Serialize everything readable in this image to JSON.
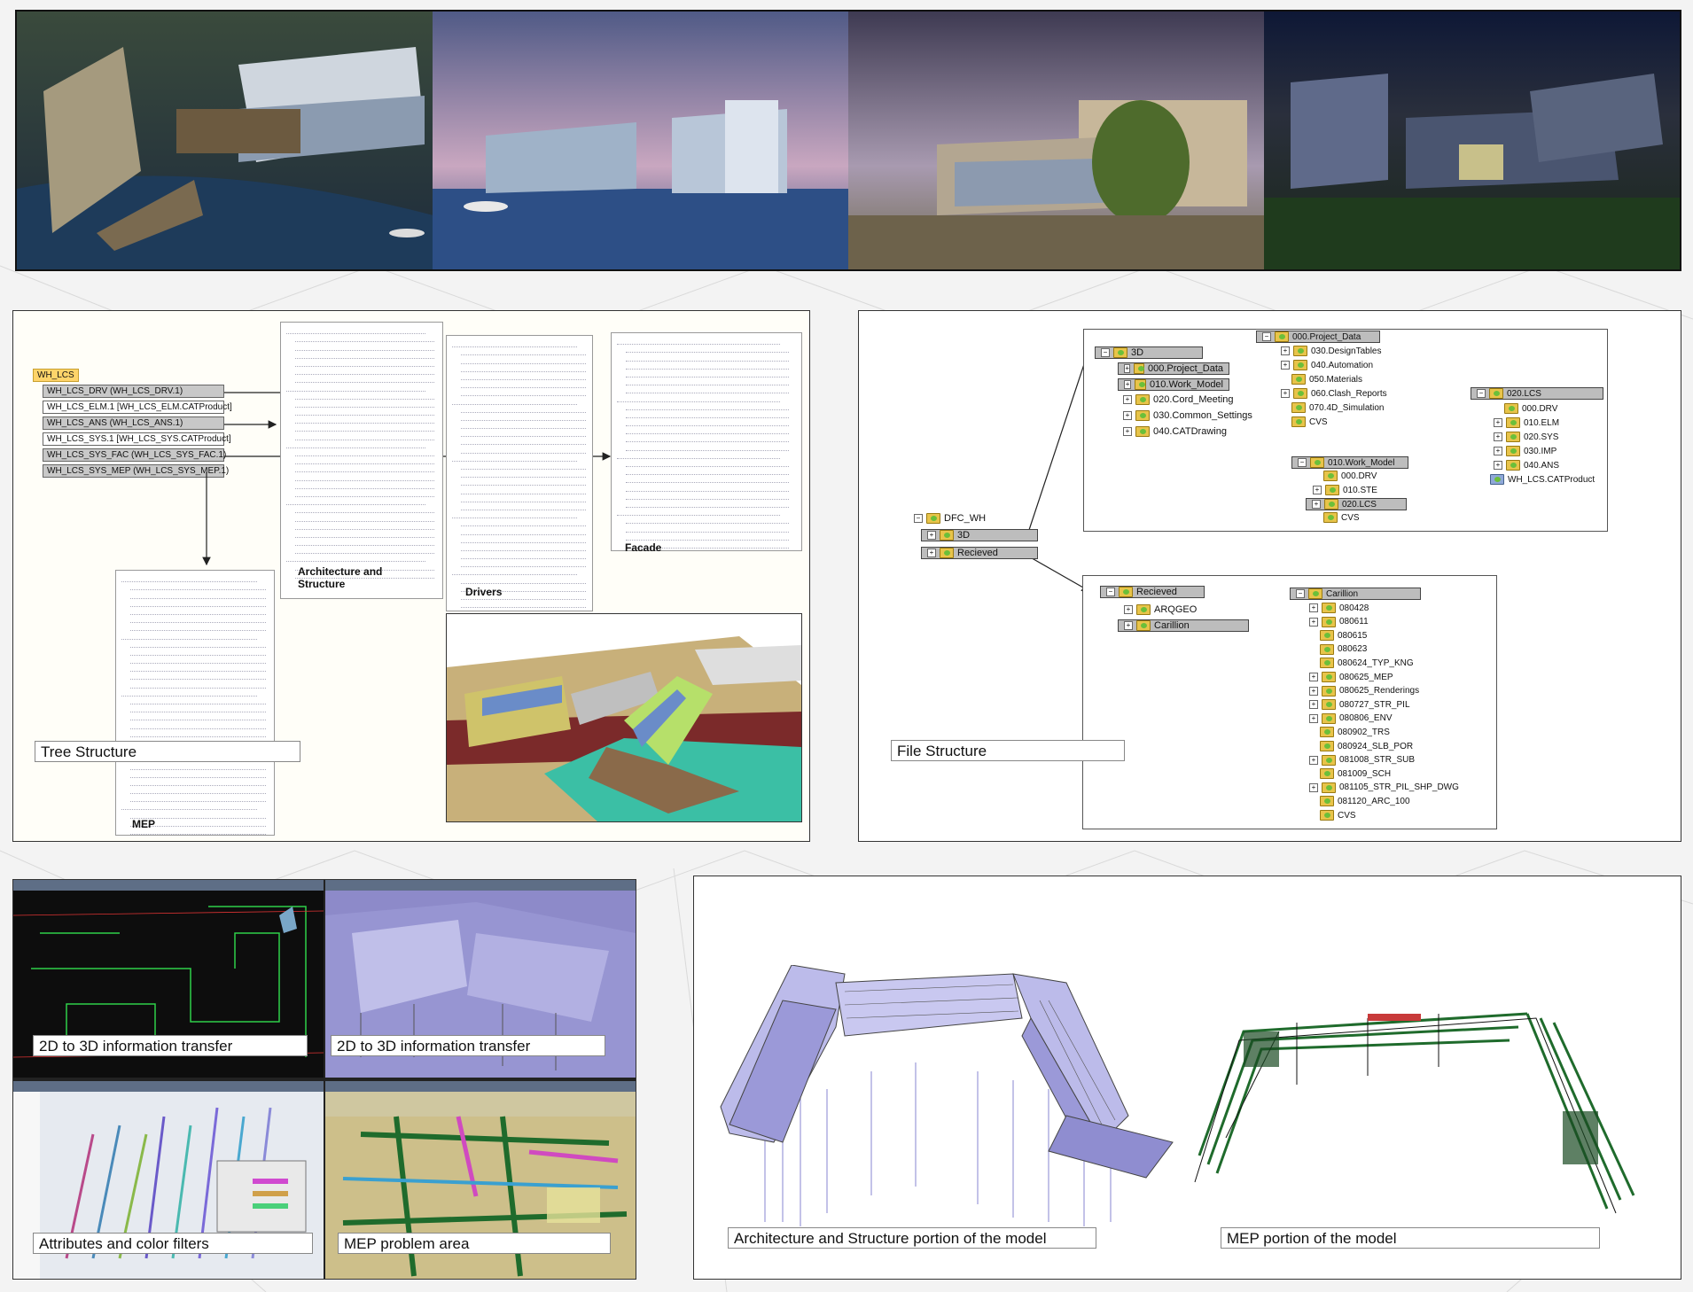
{
  "photos": [
    {
      "name": "photo-marina-aerial"
    },
    {
      "name": "photo-waterfront-dusk"
    },
    {
      "name": "photo-entrance-plaza"
    },
    {
      "name": "photo-night-aerial"
    }
  ],
  "tree_panel": {
    "caption": "Tree Structure",
    "root": "WH_LCS",
    "nodes": [
      "WH_LCS_DRV (WH_LCS_DRV.1)",
      "WH_LCS_ELM.1 [WH_LCS_ELM.CATProduct]",
      "WH_LCS_ANS (WH_LCS_ANS.1)",
      "WH_LCS_SYS.1 [WH_LCS_SYS.CATProduct]",
      "WH_LCS_SYS_FAC (WH_LCS_SYS_FAC.1)",
      "WH_LCS_SYS_MEP (WH_LCS_SYS_MEP.1)"
    ],
    "labels": {
      "architecture": "Architecture and Structure",
      "drivers": "Drivers",
      "facade": "Facade",
      "mep": "MEP"
    }
  },
  "file_panel": {
    "caption": "File Structure",
    "root": {
      "label": "DFC_WH",
      "children": [
        "3D",
        "Recieved"
      ]
    },
    "box_3d": {
      "header": "3D",
      "items": [
        "000.Project_Data",
        "010.Work_Model",
        "020.Cord_Meeting",
        "030.Common_Settings",
        "040.CATDrawing"
      ]
    },
    "box_project_data": {
      "header": "000.Project_Data",
      "items": [
        "030.DesignTables",
        "040.Automation",
        "050.Materials",
        "060.Clash_Reports",
        "070.4D_Simulation",
        "CVS"
      ]
    },
    "box_work_model": {
      "header": "010.Work_Model",
      "items": [
        "000.DRV",
        "010.STE",
        "020.LCS",
        "CVS"
      ]
    },
    "box_lcs": {
      "header": "020.LCS",
      "items": [
        "000.DRV",
        "010.ELM",
        "020.SYS",
        "030.IMP",
        "040.ANS",
        "WH_LCS.CATProduct"
      ]
    },
    "box_recieved": {
      "header": "Recieved",
      "items": [
        "ARQGEO",
        "Carillion"
      ]
    },
    "box_carillion": {
      "header": "Carillion",
      "items": [
        "080428",
        "080611",
        "080615",
        "080623",
        "080624_TYP_KNG",
        "080625_MEP",
        "080625_Renderings",
        "080727_STR_PIL",
        "080806_ENV",
        "080902_TRS",
        "080924_SLB_POR",
        "081008_STR_SUB",
        "081009_SCH",
        "081105_STR_PIL_SHP_DWG",
        "081120_ARC_100",
        "CVS"
      ]
    }
  },
  "screenshots": [
    {
      "caption": "2D to 3D information transfer"
    },
    {
      "caption": "2D to 3D information transfer"
    },
    {
      "caption": "Attributes and color filters"
    },
    {
      "caption": "MEP problem area"
    }
  ],
  "model_panel": {
    "captions": [
      "Architecture and Structure portion of the model",
      "MEP portion of the model"
    ]
  },
  "colors": {
    "folder": "#e8c44a",
    "node_bg": "#c8c8c8",
    "mep_green": "#1f6b2c",
    "model_lilac": "#b9b6e6"
  }
}
